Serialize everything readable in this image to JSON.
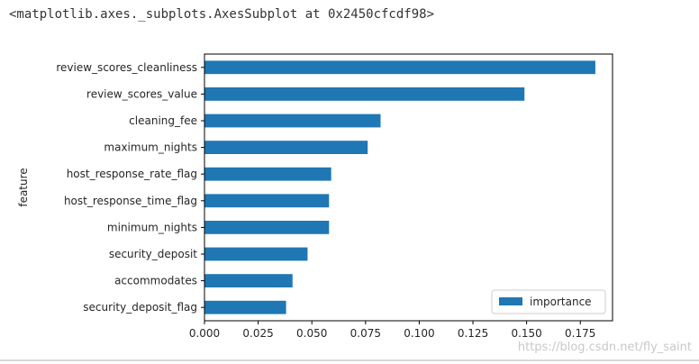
{
  "output_repr": "<matplotlib.axes._subplots.AxesSubplot at 0x2450cfcdf98>",
  "watermark": "https://blog.csdn.net/fly_saint",
  "chart_data": {
    "type": "bar",
    "orientation": "horizontal",
    "categories": [
      "review_scores_cleanliness",
      "review_scores_value",
      "cleaning_fee",
      "maximum_nights",
      "host_response_rate_flag",
      "host_response_time_flag",
      "minimum_nights",
      "security_deposit",
      "accommodates",
      "security_deposit_flag"
    ],
    "series": [
      {
        "name": "importance",
        "values": [
          0.182,
          0.149,
          0.082,
          0.076,
          0.059,
          0.058,
          0.058,
          0.048,
          0.041,
          0.038
        ]
      }
    ],
    "xticks": [
      "0.000",
      "0.025",
      "0.050",
      "0.075",
      "0.100",
      "0.125",
      "0.150",
      "0.175"
    ],
    "xlim": [
      0,
      0.19
    ],
    "ylabel": "feature",
    "xlabel": "",
    "legend_position": "bottom-right",
    "grid": false,
    "bar_color": "#1f77b4"
  }
}
